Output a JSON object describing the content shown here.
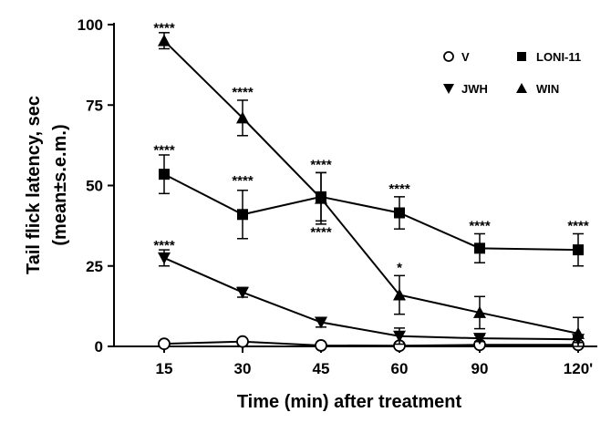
{
  "chart_data": {
    "type": "line",
    "title": "",
    "xlabel": "Time (min) after treatment",
    "ylabel_line1": "Tail flick latency, sec",
    "ylabel_line2": "(mean±s.e.m.)",
    "categories": [
      "15",
      "30",
      "45",
      "60",
      "90",
      "120'"
    ],
    "ylim": [
      0,
      100
    ],
    "yticks": [
      "0",
      "25",
      "50",
      "75",
      "100"
    ],
    "legend_position": "top-right",
    "series": [
      {
        "name": "V",
        "marker": "circle-open",
        "values": [
          0.8,
          1.5,
          0.3,
          0.2,
          0.5,
          0.5
        ],
        "errors": [
          0.5,
          0.8,
          0.3,
          0.2,
          0.5,
          0.5
        ]
      },
      {
        "name": "LONI-11",
        "marker": "square",
        "values": [
          53.5,
          41,
          46.5,
          41.5,
          30.5,
          30
        ],
        "errors": [
          6,
          7.5,
          7.5,
          5,
          4.5,
          5
        ]
      },
      {
        "name": "JWH",
        "marker": "triangle-down",
        "values": [
          27.5,
          16.8,
          7.5,
          3.2,
          2.5,
          2.2
        ],
        "errors": [
          2.5,
          1.5,
          1.5,
          2.5,
          1,
          1
        ]
      },
      {
        "name": "WIN",
        "marker": "triangle-up",
        "values": [
          95,
          71,
          46,
          16,
          10.5,
          4
        ],
        "errors": [
          2.5,
          5.5,
          8,
          6,
          5,
          5
        ]
      }
    ],
    "annotations": [
      {
        "text": "****",
        "x_index": 0,
        "y": 99
      },
      {
        "text": "****",
        "x_index": 0,
        "y": 61
      },
      {
        "text": "****",
        "x_index": 0,
        "y": 31.5
      },
      {
        "text": "****",
        "x_index": 1,
        "y": 79
      },
      {
        "text": "****",
        "x_index": 1,
        "y": 51.5
      },
      {
        "text": "****",
        "x_index": 2,
        "y": 56.5
      },
      {
        "text": "****",
        "x_index": 2,
        "y": 35.5
      },
      {
        "text": "****",
        "x_index": 3,
        "y": 49
      },
      {
        "text": "*",
        "x_index": 3,
        "y": 24.5
      },
      {
        "text": "****",
        "x_index": 4,
        "y": 37.5
      },
      {
        "text": "****",
        "x_index": 5,
        "y": 37.5
      }
    ]
  }
}
